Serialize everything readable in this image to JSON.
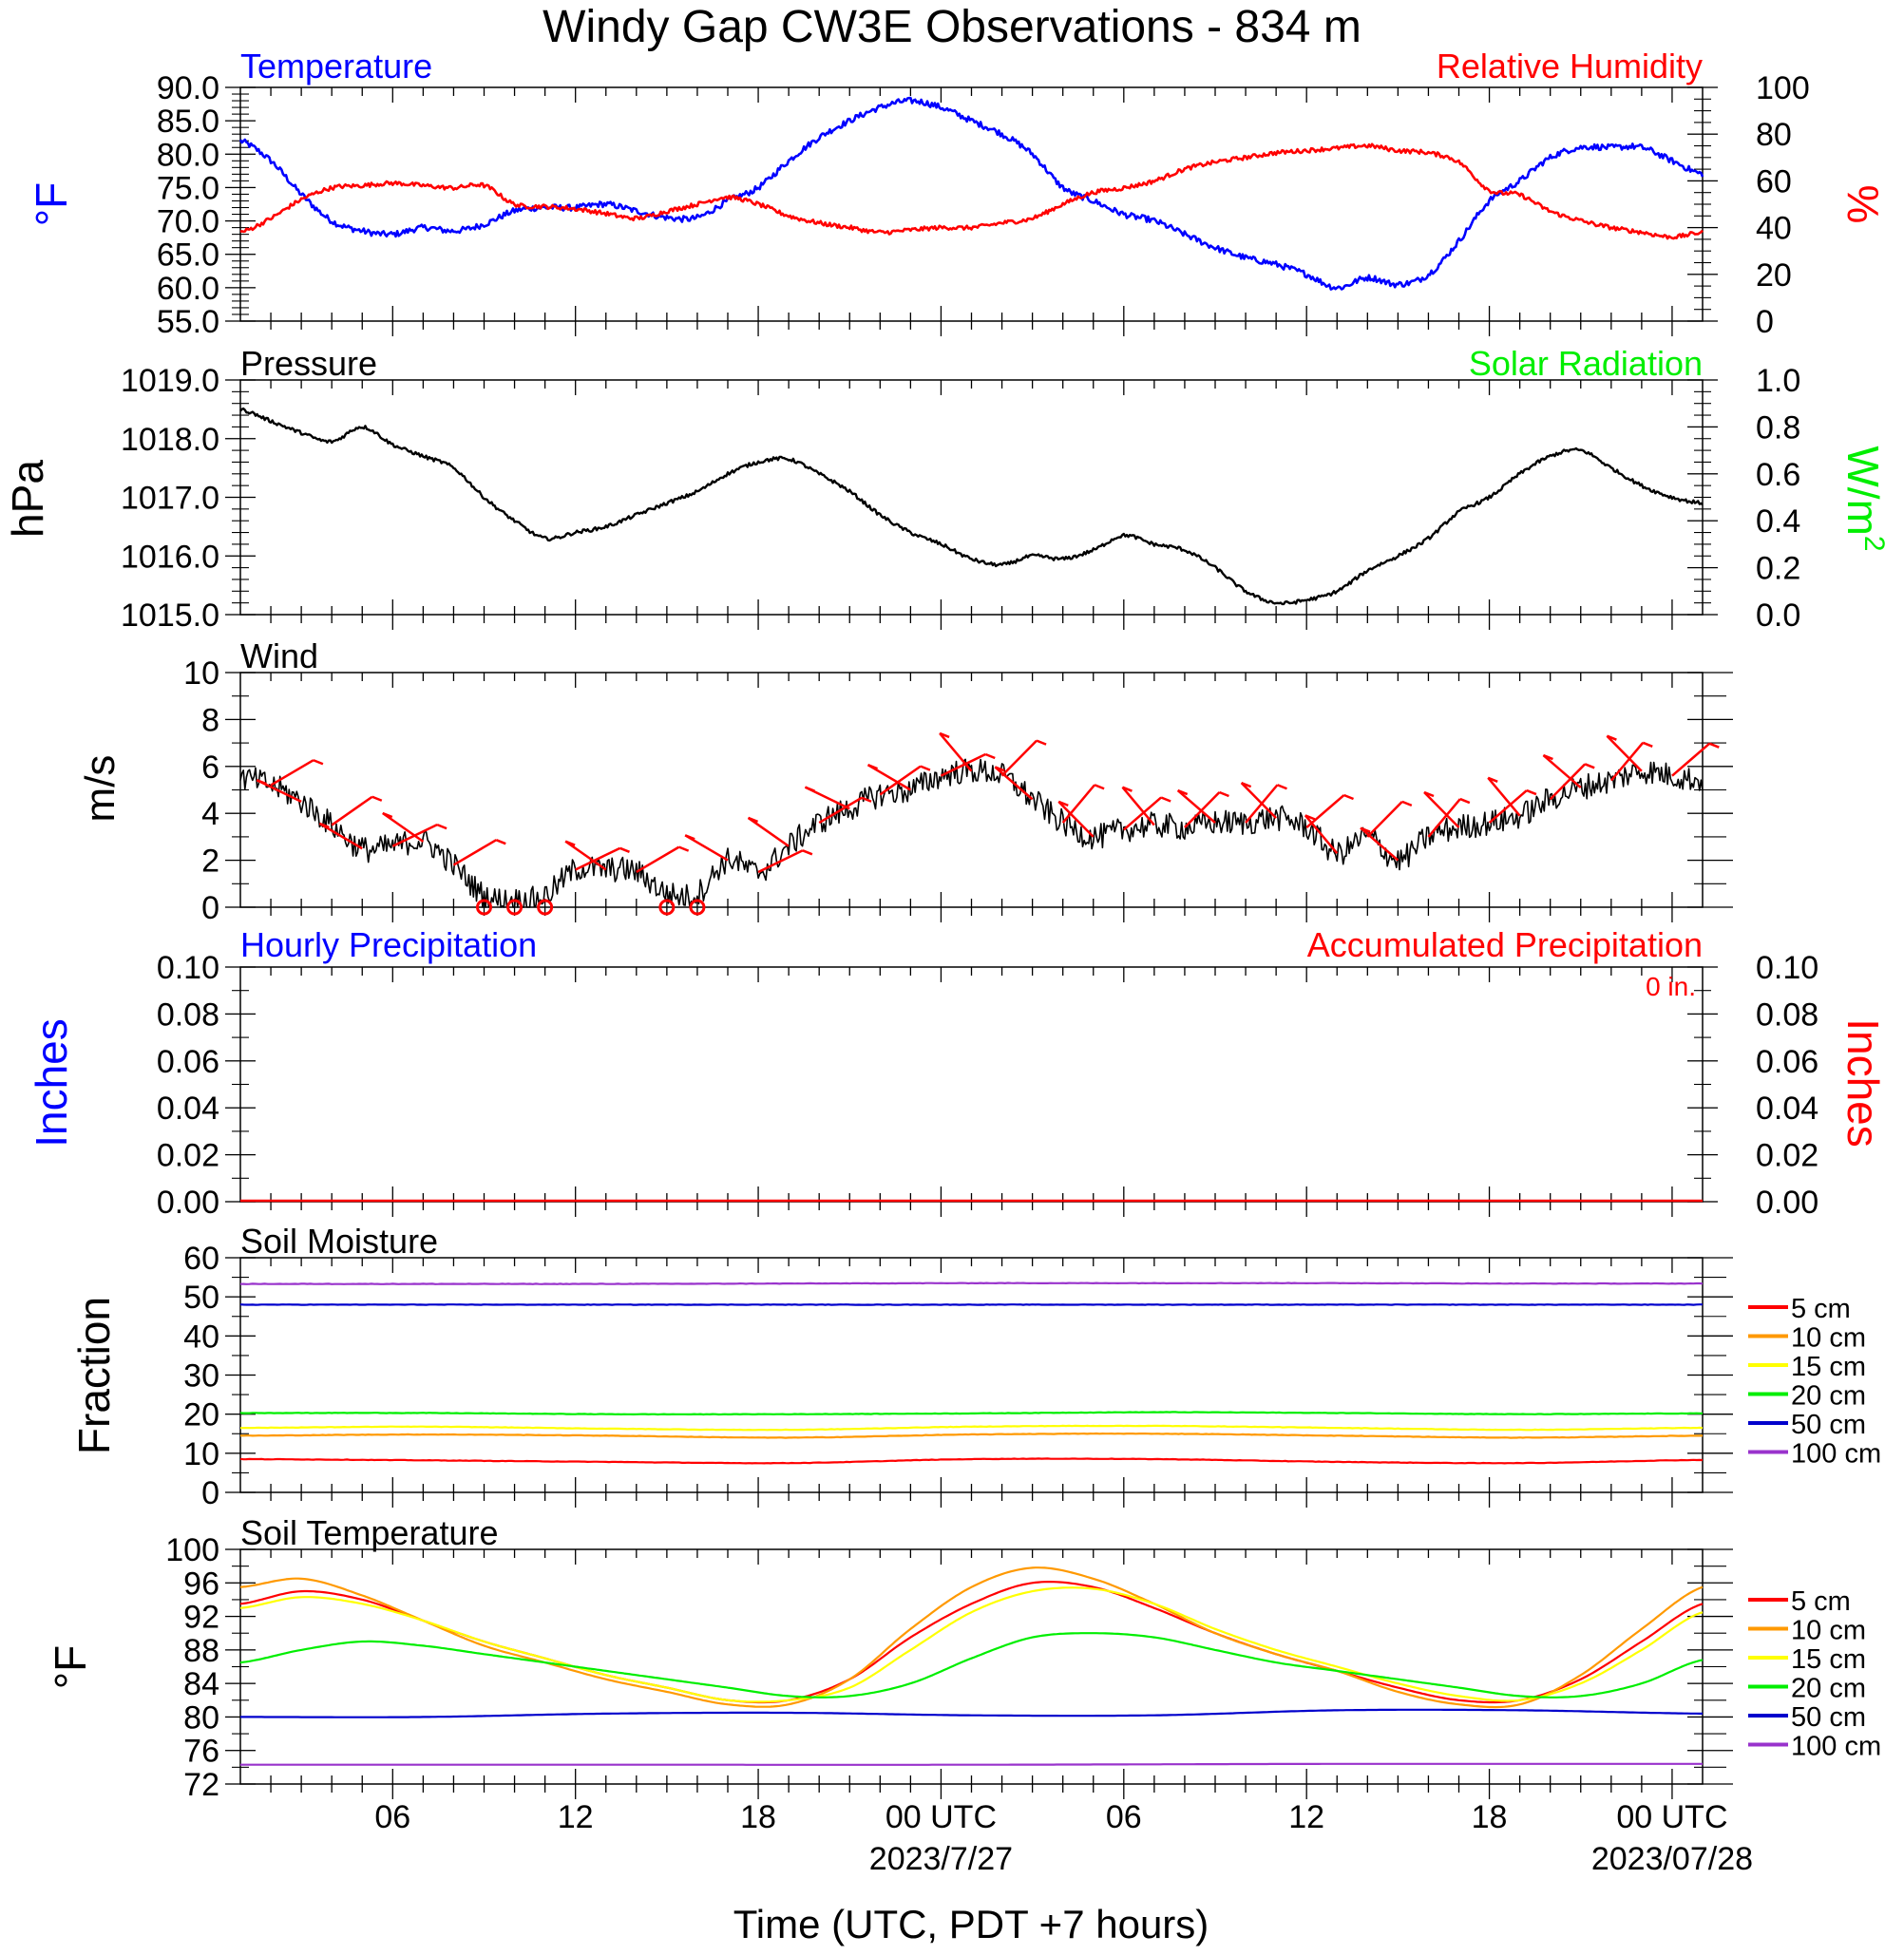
{
  "title": "Windy Gap CW3E Observations - 834 m",
  "colors": {
    "blue": "#0000ff",
    "red": "#ff0000",
    "green": "#00ee00",
    "black": "#000000",
    "orange": "#ff9900",
    "yellow": "#ffff00",
    "navy": "#0000cc",
    "purple": "#9933cc"
  },
  "x_axis": {
    "label": "Time (UTC, PDT +7 hours)",
    "ticks": [
      {
        "h": 5,
        "label": "06"
      },
      {
        "h": 11,
        "label": "12"
      },
      {
        "h": 17,
        "label": "18"
      },
      {
        "h": 23,
        "label": "00 UTC"
      },
      {
        "h": 29,
        "label": "06"
      },
      {
        "h": 35,
        "label": "12"
      },
      {
        "h": 41,
        "label": "18"
      },
      {
        "h": 47,
        "label": "00 UTC"
      }
    ],
    "dates": [
      {
        "h": 23,
        "label": "2023/7/27"
      },
      {
        "h": 47,
        "label": "2023/07/28"
      }
    ],
    "range_hours": [
      0,
      48
    ]
  },
  "panels": {
    "temp_rh": {
      "left_title": "Temperature",
      "right_title": "Relative Humidity",
      "left_unit": "°F",
      "right_unit": "%",
      "left_ticks": [
        "90.0",
        "85.0",
        "80.0",
        "75.0",
        "70.0",
        "65.0",
        "60.0",
        "55.0"
      ],
      "right_ticks": [
        "100",
        "80",
        "60",
        "40",
        "20",
        "0"
      ]
    },
    "pressure": {
      "left_title": "Pressure",
      "right_title": "Solar Radiation",
      "left_unit": "hPa",
      "right_unit_base": "W/m",
      "right_unit_sup": "2",
      "left_ticks": [
        "1019.0",
        "1018.0",
        "1017.0",
        "1016.0",
        "1015.0"
      ],
      "right_ticks": [
        "1.0",
        "0.8",
        "0.6",
        "0.4",
        "0.2",
        "0.0"
      ]
    },
    "wind": {
      "title": "Wind",
      "unit": "m/s",
      "ticks": [
        "10",
        "8",
        "6",
        "4",
        "2",
        "0"
      ]
    },
    "precip": {
      "left_title": "Hourly Precipitation",
      "right_title": "Accumulated Precipitation",
      "total_label": "0 in.",
      "left_unit": "Inches",
      "right_unit": "Inches",
      "left_ticks": [
        "0.10",
        "0.08",
        "0.06",
        "0.04",
        "0.02",
        "0.00"
      ],
      "right_ticks": [
        "0.10",
        "0.08",
        "0.06",
        "0.04",
        "0.02",
        "0.00"
      ]
    },
    "soil_moisture": {
      "title": "Soil Moisture",
      "unit": "Fraction",
      "ticks": [
        "60",
        "50",
        "40",
        "30",
        "20",
        "10",
        "0"
      ],
      "legend": [
        "5 cm",
        "10 cm",
        "15 cm",
        "20 cm",
        "50 cm",
        "100 cm"
      ]
    },
    "soil_temp": {
      "title": "Soil Temperature",
      "unit": "°F",
      "ticks": [
        "100",
        "96",
        "92",
        "88",
        "84",
        "80",
        "76",
        "72"
      ],
      "legend": [
        "5 cm",
        "10 cm",
        "15 cm",
        "20 cm",
        "50 cm",
        "100 cm"
      ]
    }
  },
  "chart_data": [
    {
      "type": "line",
      "title": "Temperature / Relative Humidity",
      "x_unit": "hours since 2023-07-26 01 UTC",
      "ylim_left": [
        55,
        90
      ],
      "ylim_right": [
        0,
        100
      ],
      "series": [
        {
          "name": "Temperature",
          "axis": "left",
          "color": "#0000ff",
          "x": [
            0,
            1,
            2,
            3,
            4,
            5,
            6,
            7,
            8,
            9,
            10,
            11,
            12,
            13,
            14,
            15,
            16,
            17,
            18,
            19,
            20,
            21,
            22,
            23,
            24,
            25,
            26,
            27,
            28,
            29,
            30,
            31,
            32,
            33,
            34,
            35,
            36,
            37,
            38,
            39,
            40,
            41,
            42,
            43,
            44,
            45,
            46,
            47,
            48
          ],
          "y": [
            82,
            79,
            74,
            70,
            68.5,
            68,
            69,
            68.5,
            69.5,
            71.5,
            72,
            72,
            72.5,
            71.5,
            70.5,
            70.5,
            73,
            75,
            79,
            82.5,
            85,
            87,
            88,
            87,
            85,
            83,
            80,
            75,
            73,
            71,
            70,
            68,
            66,
            64.5,
            63.5,
            62,
            60,
            61.5,
            60.5,
            62,
            67,
            73,
            76,
            79.5,
            81,
            81,
            81,
            79,
            77
          ]
        },
        {
          "name": "Relative Humidity",
          "axis": "right",
          "color": "#ff0000",
          "x": [
            0,
            1,
            2,
            3,
            4,
            5,
            6,
            7,
            8,
            9,
            10,
            11,
            12,
            13,
            14,
            15,
            16,
            17,
            18,
            19,
            20,
            21,
            22,
            23,
            24,
            25,
            26,
            27,
            28,
            29,
            30,
            31,
            32,
            33,
            34,
            35,
            36,
            37,
            38,
            39,
            40,
            41,
            42,
            43,
            44,
            45,
            46,
            47,
            48
          ],
          "y": [
            38,
            44,
            52,
            57,
            58,
            59,
            58,
            57,
            58,
            50,
            49,
            48,
            46,
            44,
            47,
            50,
            53,
            50,
            45,
            42,
            40,
            38,
            39,
            40,
            40,
            42,
            44,
            50,
            55,
            57,
            60,
            65,
            68,
            70,
            72,
            73,
            74,
            75,
            73,
            72,
            68,
            56,
            54,
            47,
            43,
            40,
            38,
            36,
            38
          ]
        }
      ]
    },
    {
      "type": "line",
      "title": "Pressure",
      "ylim": [
        1015.0,
        1019.0
      ],
      "series": [
        {
          "name": "Pressure",
          "color": "#000000",
          "x": [
            0,
            1,
            2,
            3,
            4,
            5,
            6,
            7,
            8,
            9,
            10,
            11,
            12,
            13,
            14,
            15,
            16,
            17,
            18,
            19,
            20,
            21,
            22,
            23,
            24,
            25,
            26,
            27,
            28,
            29,
            30,
            31,
            32,
            33,
            34,
            35,
            36,
            37,
            38,
            39,
            40,
            41,
            42,
            43,
            44,
            45,
            46,
            47,
            48
          ],
          "y": [
            1018.5,
            1018.3,
            1018.1,
            1017.95,
            1018.2,
            1017.9,
            1017.7,
            1017.5,
            1017.0,
            1016.6,
            1016.3,
            1016.4,
            1016.5,
            1016.7,
            1016.9,
            1017.1,
            1017.4,
            1017.6,
            1017.65,
            1017.4,
            1017.1,
            1016.7,
            1016.4,
            1016.2,
            1015.95,
            1015.85,
            1016.0,
            1015.95,
            1016.1,
            1016.35,
            1016.2,
            1016.1,
            1015.8,
            1015.4,
            1015.2,
            1015.25,
            1015.4,
            1015.75,
            1016.0,
            1016.3,
            1016.75,
            1017.0,
            1017.4,
            1017.7,
            1017.8,
            1017.5,
            1017.2,
            1017.0,
            1016.9
          ]
        }
      ]
    },
    {
      "type": "line",
      "title": "Wind",
      "ylim": [
        0,
        10
      ],
      "series": [
        {
          "name": "Wind speed",
          "color": "#000000",
          "x": [
            0,
            1,
            2,
            3,
            4,
            5,
            6,
            7,
            8,
            9,
            10,
            11,
            12,
            13,
            14,
            15,
            16,
            17,
            18,
            19,
            20,
            21,
            22,
            23,
            24,
            25,
            26,
            27,
            28,
            29,
            30,
            31,
            32,
            33,
            34,
            35,
            36,
            37,
            38,
            39,
            40,
            41,
            42,
            43,
            44,
            45,
            46,
            47,
            48
          ],
          "y": [
            5.5,
            5.2,
            4.5,
            3.5,
            2.5,
            2.6,
            2.8,
            1.8,
            0.5,
            0.3,
            0.5,
            1.6,
            1.6,
            1.5,
            0.6,
            0.6,
            2.0,
            1.5,
            2.6,
            3.6,
            4.2,
            4.8,
            5.0,
            5.6,
            5.8,
            5.6,
            4.6,
            3.6,
            3.0,
            3.3,
            3.5,
            3.4,
            3.6,
            3.6,
            3.8,
            3.4,
            2.3,
            3.0,
            2.0,
            3.0,
            3.4,
            3.6,
            3.9,
            4.6,
            5.1,
            5.4,
            5.8,
            5.6,
            5.4
          ]
        }
      ]
    },
    {
      "type": "line",
      "title": "Hourly Precipitation / Accumulated Precipitation",
      "ylim": [
        0,
        0.1
      ],
      "series": [
        {
          "name": "Hourly Precipitation",
          "color": "#0000ff",
          "x": [
            0,
            48
          ],
          "y": [
            0,
            0
          ]
        },
        {
          "name": "Accumulated Precipitation",
          "color": "#ff0000",
          "x": [
            0,
            48
          ],
          "y": [
            0,
            0
          ]
        }
      ]
    },
    {
      "type": "line",
      "title": "Soil Moisture",
      "ylim": [
        0,
        60
      ],
      "series": [
        {
          "name": "5 cm",
          "color": "#ff0000",
          "x": [
            0,
            6,
            12,
            18,
            24,
            30,
            36,
            42,
            48
          ],
          "y": [
            8.5,
            8.2,
            7.8,
            7.5,
            8.5,
            8.5,
            7.8,
            7.5,
            8.3
          ]
        },
        {
          "name": "10 cm",
          "color": "#ff9900",
          "x": [
            0,
            6,
            12,
            18,
            24,
            30,
            36,
            42,
            48
          ],
          "y": [
            14.5,
            14.8,
            14.5,
            14.0,
            14.8,
            15.0,
            14.5,
            14.0,
            14.5
          ]
        },
        {
          "name": "15 cm",
          "color": "#ffff00",
          "x": [
            0,
            6,
            12,
            18,
            24,
            30,
            36,
            42,
            48
          ],
          "y": [
            16.5,
            16.8,
            16.3,
            16.0,
            16.8,
            17.0,
            16.5,
            16.0,
            16.5
          ]
        },
        {
          "name": "20 cm",
          "color": "#00ee00",
          "x": [
            0,
            6,
            12,
            18,
            24,
            30,
            36,
            42,
            48
          ],
          "y": [
            20.3,
            20.3,
            20.0,
            20.0,
            20.2,
            20.5,
            20.3,
            20.0,
            20.2
          ]
        },
        {
          "name": "50 cm",
          "color": "#0000cc",
          "x": [
            0,
            6,
            12,
            18,
            24,
            30,
            36,
            42,
            48
          ],
          "y": [
            48.0,
            48.0,
            48.0,
            48.0,
            48.0,
            48.0,
            48.0,
            48.0,
            48.0
          ]
        },
        {
          "name": "100 cm",
          "color": "#9933cc",
          "x": [
            0,
            6,
            12,
            18,
            24,
            30,
            36,
            42,
            48
          ],
          "y": [
            53.3,
            53.3,
            53.3,
            53.4,
            53.5,
            53.5,
            53.5,
            53.4,
            53.4
          ]
        }
      ]
    },
    {
      "type": "line",
      "title": "Soil Temperature",
      "ylim": [
        72,
        100
      ],
      "series": [
        {
          "name": "5 cm",
          "color": "#ff0000",
          "x": [
            0,
            2,
            4,
            6,
            8,
            10,
            12,
            14,
            16,
            18,
            20,
            22,
            24,
            26,
            28,
            30,
            32,
            34,
            36,
            38,
            40,
            42,
            44,
            46,
            48
          ],
          "y": [
            93.5,
            95.0,
            94.0,
            91.5,
            89.0,
            87.0,
            85.0,
            83.5,
            82.0,
            82.0,
            84.5,
            89.5,
            93.5,
            96.0,
            95.5,
            93.0,
            90.0,
            87.5,
            85.5,
            83.5,
            82.0,
            82.0,
            84.5,
            89.0,
            93.5
          ]
        },
        {
          "name": "10 cm",
          "color": "#ff9900",
          "x": [
            0,
            2,
            4,
            6,
            8,
            10,
            12,
            14,
            16,
            18,
            20,
            22,
            24,
            26,
            28,
            30,
            32,
            34,
            36,
            38,
            40,
            42,
            44,
            46,
            48
          ],
          "y": [
            95.5,
            96.5,
            94.5,
            91.5,
            88.5,
            86.5,
            84.5,
            83.0,
            81.5,
            81.5,
            84.5,
            90.5,
            95.5,
            97.8,
            96.5,
            93.5,
            90.0,
            87.5,
            85.5,
            83.0,
            81.5,
            81.5,
            85.0,
            90.5,
            95.5
          ]
        },
        {
          "name": "15 cm",
          "color": "#ffff00",
          "x": [
            0,
            2,
            4,
            6,
            8,
            10,
            12,
            14,
            16,
            18,
            20,
            22,
            24,
            26,
            28,
            30,
            32,
            34,
            36,
            38,
            40,
            42,
            44,
            46,
            48
          ],
          "y": [
            93.0,
            94.3,
            93.5,
            91.5,
            89.0,
            87.0,
            85.0,
            83.5,
            82.0,
            82.0,
            83.5,
            88.0,
            92.5,
            95.0,
            95.3,
            93.5,
            90.5,
            88.0,
            86.0,
            84.0,
            82.5,
            82.0,
            84.0,
            88.0,
            92.5
          ]
        },
        {
          "name": "20 cm",
          "color": "#00ee00",
          "x": [
            0,
            2,
            4,
            6,
            8,
            10,
            12,
            14,
            16,
            18,
            20,
            22,
            24,
            26,
            28,
            30,
            32,
            34,
            36,
            38,
            40,
            42,
            44,
            46,
            48
          ],
          "y": [
            86.5,
            88.0,
            89.0,
            88.5,
            87.5,
            86.5,
            85.5,
            84.5,
            83.5,
            82.5,
            82.5,
            84.0,
            87.0,
            89.5,
            90.0,
            89.5,
            88.0,
            86.5,
            85.5,
            84.5,
            83.5,
            82.5,
            82.5,
            84.0,
            86.8
          ]
        },
        {
          "name": "50 cm",
          "color": "#0000cc",
          "x": [
            0,
            6,
            12,
            18,
            24,
            30,
            36,
            42,
            48
          ],
          "y": [
            80.0,
            80.0,
            80.4,
            80.5,
            80.2,
            80.2,
            80.8,
            80.8,
            80.4
          ]
        },
        {
          "name": "100 cm",
          "color": "#9933cc",
          "x": [
            0,
            12,
            24,
            36,
            48
          ],
          "y": [
            74.3,
            74.3,
            74.3,
            74.4,
            74.4
          ]
        }
      ]
    }
  ]
}
